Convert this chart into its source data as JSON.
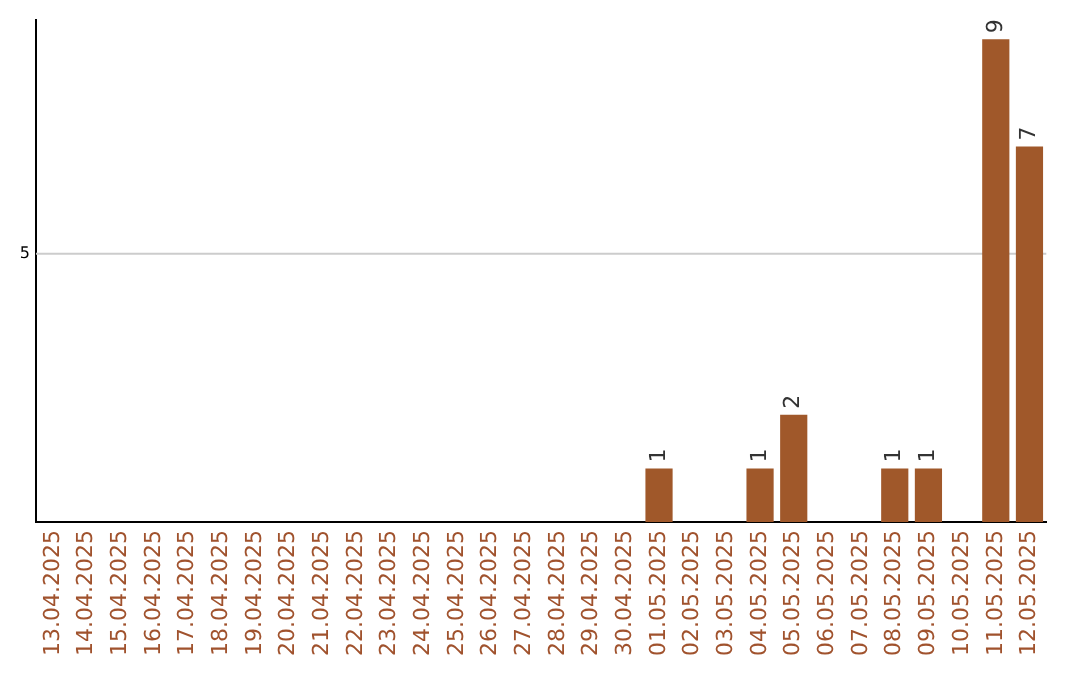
{
  "chart_data": {
    "type": "bar",
    "categories": [
      "13.04.2025",
      "14.04.2025",
      "15.04.2025",
      "16.04.2025",
      "17.04.2025",
      "18.04.2025",
      "19.04.2025",
      "20.04.2025",
      "21.04.2025",
      "22.04.2025",
      "23.04.2025",
      "24.04.2025",
      "25.04.2025",
      "26.04.2025",
      "27.04.2025",
      "28.04.2025",
      "29.04.2025",
      "30.04.2025",
      "01.05.2025",
      "02.05.2025",
      "03.05.2025",
      "04.05.2025",
      "05.05.2025",
      "06.05.2025",
      "07.05.2025",
      "08.05.2025",
      "09.05.2025",
      "10.05.2025",
      "11.05.2025",
      "12.05.2025"
    ],
    "values": [
      null,
      null,
      null,
      null,
      null,
      null,
      null,
      null,
      null,
      null,
      null,
      null,
      null,
      null,
      null,
      null,
      null,
      null,
      1,
      null,
      null,
      1,
      2,
      null,
      null,
      1,
      1,
      null,
      9,
      7
    ],
    "value_labels": [
      null,
      null,
      null,
      null,
      null,
      null,
      null,
      null,
      null,
      null,
      null,
      null,
      null,
      null,
      null,
      null,
      null,
      null,
      "1",
      null,
      null,
      "1",
      "2",
      null,
      null,
      "1",
      "1",
      null,
      "9",
      "7"
    ],
    "color": "#a0582a",
    "ref_lines": [
      {
        "axis": "y",
        "value": 5,
        "label": "5",
        "color": "#cccccc"
      }
    ],
    "legend": false
  }
}
